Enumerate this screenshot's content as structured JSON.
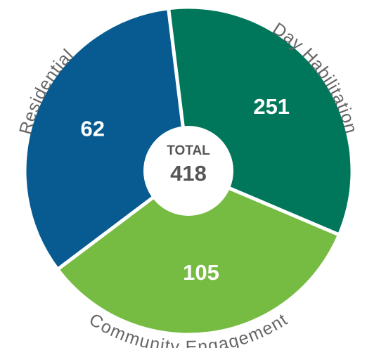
{
  "chart_data": {
    "type": "donut",
    "categories": [
      "Residential",
      "Day Habilitation",
      "Community Engagement"
    ],
    "values": [
      62,
      251,
      105
    ],
    "colors": [
      "#075b91",
      "#00775a",
      "#76bc43"
    ],
    "center_label": "TOTAL",
    "total": 418
  }
}
